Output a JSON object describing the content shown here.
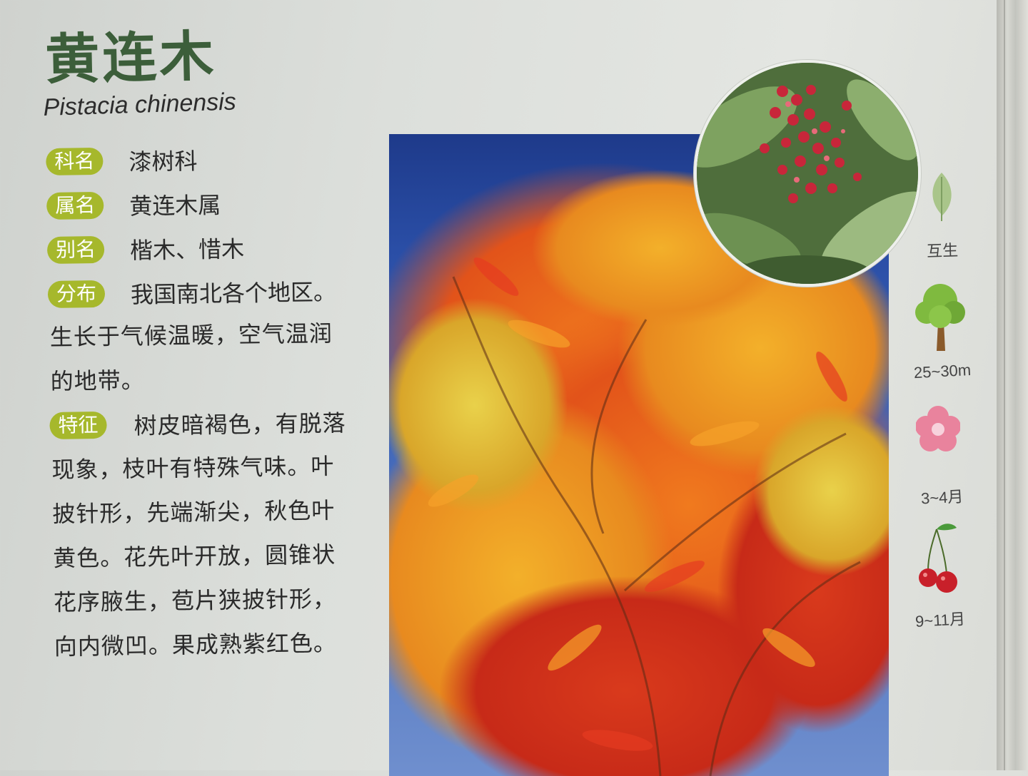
{
  "title": "黄连木",
  "latin_name": "Pistacia chinensis",
  "fields": [
    {
      "label": "科名",
      "value": "漆树科"
    },
    {
      "label": "属名",
      "value": "黄连木属"
    },
    {
      "label": "别名",
      "value": "楷木、惜木"
    },
    {
      "label": "分布",
      "value": "我国南北各个地区。"
    }
  ],
  "distribution_lines": [
    "生长于气候温暖，空气温润",
    "的地带。"
  ],
  "feature": {
    "label": "特征",
    "first_line": "树皮暗褐色，有脱落",
    "lines": [
      "现象，枝叶有特殊气味。叶",
      "披针形，先端渐尖，秋色叶",
      "黄色。花先叶开放，圆锥状",
      "花序腋生，苞片狭披针形，",
      "向内微凹。果成熟紫红色。"
    ]
  },
  "side_icons": [
    {
      "icon": "leaf-icon",
      "label": "互生"
    },
    {
      "icon": "tree-icon",
      "label": "25~30m"
    },
    {
      "icon": "flower-icon",
      "label": "3~4月"
    },
    {
      "icon": "cherry-fruit-icon",
      "label": "9~11月"
    }
  ],
  "colors": {
    "title": "#3c5e3a",
    "badge": "#a6b82c",
    "leaf": "#a9c58a",
    "tree": "#7fba3f",
    "flower": "#e9839d",
    "fruit": "#c8202a"
  }
}
